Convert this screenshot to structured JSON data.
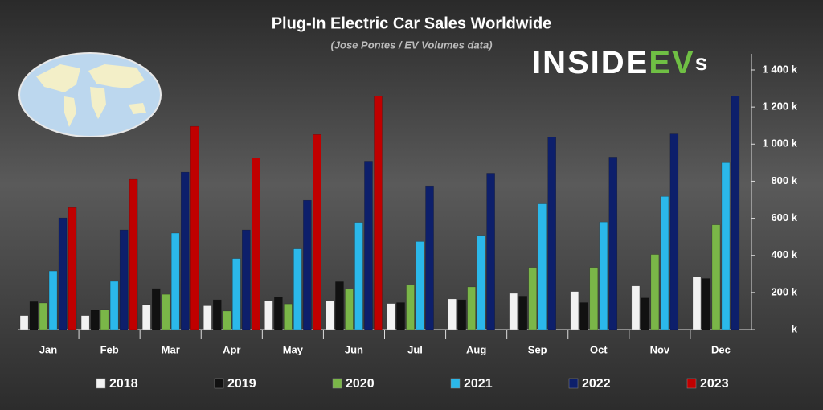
{
  "chart_data": {
    "type": "bar",
    "title": "Plug-In Electric Car Sales Worldwide",
    "subtitle": "(Jose Pontes / EV Volumes data)",
    "brand": {
      "left": "INSIDE",
      "accent": "EV",
      "right": "s"
    },
    "categories": [
      "Jan",
      "Feb",
      "Mar",
      "Apr",
      "May",
      "Jun",
      "Jul",
      "Aug",
      "Sep",
      "Oct",
      "Nov",
      "Dec"
    ],
    "series": [
      {
        "name": "2018",
        "color": "#f2f2f2",
        "values": [
          75,
          75,
          134,
          128,
          155,
          155,
          140,
          165,
          195,
          205,
          235,
          285
        ]
      },
      {
        "name": "2019",
        "color": "#111111",
        "values": [
          150,
          104,
          221,
          160,
          175,
          258,
          145,
          160,
          180,
          145,
          170,
          275
        ]
      },
      {
        "name": "2020",
        "color": "#7ab648",
        "values": [
          143,
          108,
          190,
          100,
          138,
          220,
          240,
          230,
          335,
          335,
          405,
          565
        ]
      },
      {
        "name": "2021",
        "color": "#2bb8ea",
        "values": [
          316,
          260,
          520,
          383,
          435,
          578,
          475,
          508,
          678,
          580,
          718,
          900
        ]
      },
      {
        "name": "2022",
        "color": "#0d1f6b",
        "values": [
          602,
          537,
          849,
          537,
          697,
          908,
          775,
          843,
          1038,
          930,
          1055,
          1260
        ]
      },
      {
        "name": "2023",
        "color": "#c00000",
        "values": [
          658,
          810,
          1096,
          925,
          1052,
          1260,
          null,
          null,
          null,
          null,
          null,
          null
        ]
      }
    ],
    "ylim": [
      0,
      1400
    ],
    "yticks": [
      {
        "value": 0,
        "label": "k"
      },
      {
        "value": 200,
        "label": "200 k"
      },
      {
        "value": 400,
        "label": "400 k"
      },
      {
        "value": 600,
        "label": "600 k"
      },
      {
        "value": 800,
        "label": "800 k"
      },
      {
        "value": 1000,
        "label": "1 000 k"
      },
      {
        "value": 1200,
        "label": "1 200 k"
      },
      {
        "value": 1400,
        "label": "1 400 k"
      }
    ],
    "grid": false
  }
}
